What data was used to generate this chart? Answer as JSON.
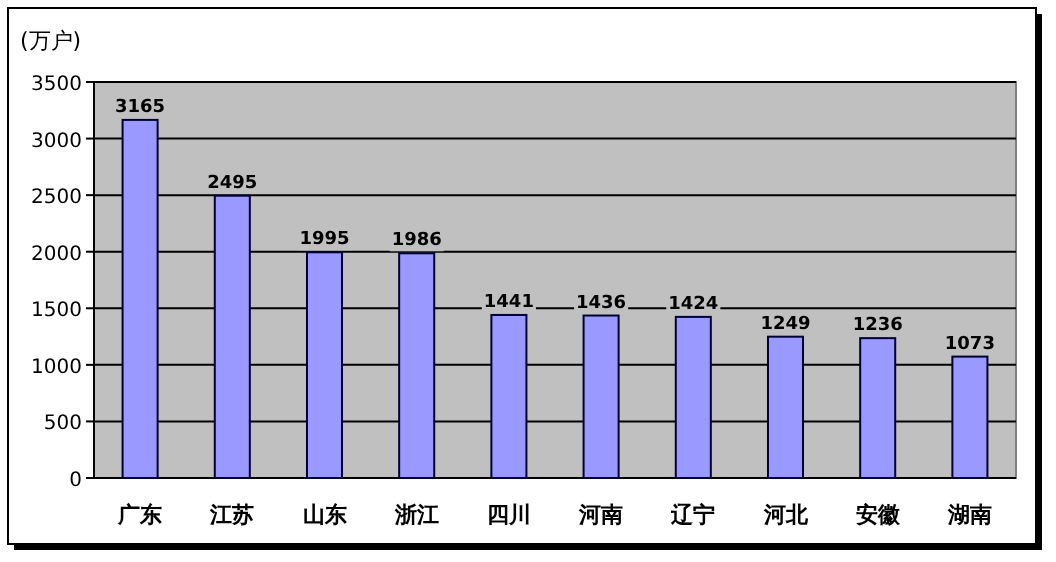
{
  "chart_data": {
    "type": "bar",
    "ylabel": "(万户)",
    "categories": [
      "广东",
      "江苏",
      "山东",
      "浙江",
      "四川",
      "河南",
      "辽宁",
      "河北",
      "安徽",
      "湖南"
    ],
    "values": [
      3165,
      2495,
      1995,
      1986,
      1441,
      1436,
      1424,
      1249,
      1236,
      1073
    ],
    "color": "#9999ff",
    "ylim": [
      0,
      3500
    ],
    "yticks": [
      0,
      500,
      1000,
      1500,
      2000,
      2500,
      3000,
      3500
    ],
    "grid": "y",
    "data_labels": true
  }
}
